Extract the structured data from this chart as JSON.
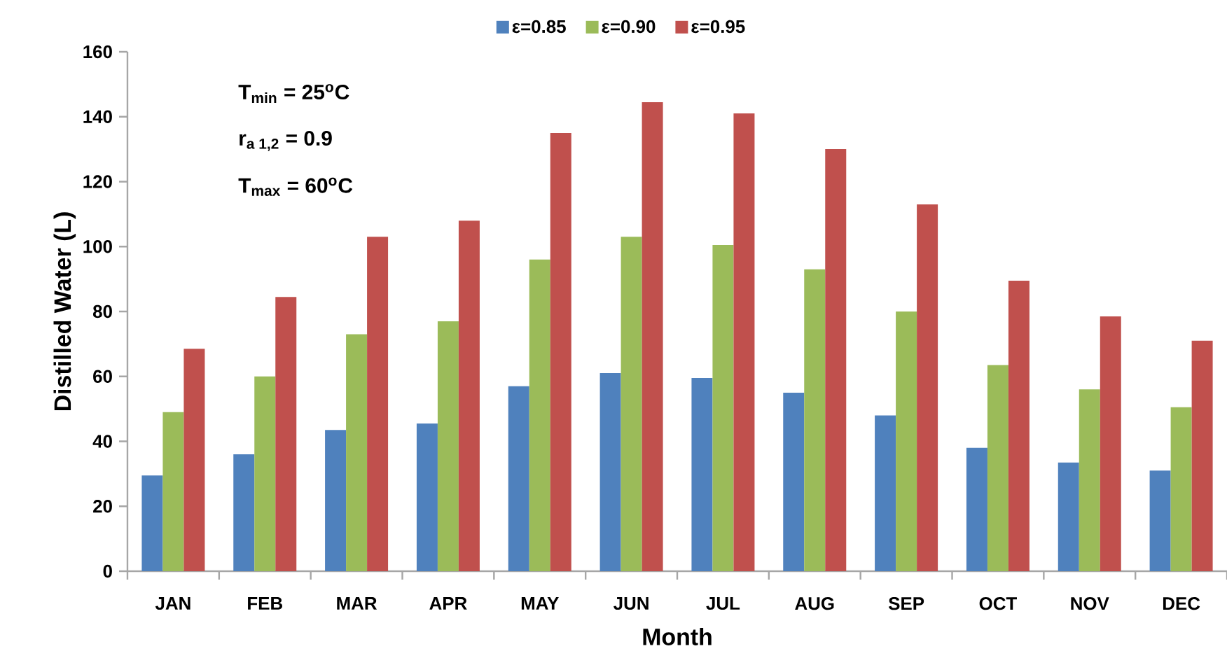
{
  "chart_data": {
    "type": "bar",
    "xlabel": "Month",
    "ylabel": "Distilled Water (L)",
    "categories": [
      "JAN",
      "FEB",
      "MAR",
      "APR",
      "MAY",
      "JUN",
      "JUL",
      "AUG",
      "SEP",
      "OCT",
      "NOV",
      "DEC"
    ],
    "series": [
      {
        "name": "ε=0.85",
        "color": "#4f81bd",
        "values": [
          29.5,
          36,
          43.5,
          45.5,
          57,
          61,
          59.5,
          55,
          48,
          38,
          33.5,
          31
        ]
      },
      {
        "name": "ε=0.90",
        "color": "#9bbb59",
        "values": [
          49,
          60,
          73,
          77,
          96,
          103,
          100.5,
          93,
          80,
          63.5,
          56,
          50.5
        ]
      },
      {
        "name": "ε=0.95",
        "color": "#c0504d",
        "values": [
          68.5,
          84.5,
          103,
          108,
          135,
          144.5,
          141,
          130,
          113,
          89.5,
          78.5,
          71
        ]
      }
    ],
    "ylim": [
      0,
      160
    ],
    "yticks": [
      0,
      20,
      40,
      60,
      80,
      100,
      120,
      140,
      160
    ],
    "legend": "top",
    "grid": false,
    "annotations": [
      "T$_{min}$ = 25$^{o}$C",
      "r$_{a 1,2}$ = 0.9",
      "T$_{max}$ = 60$^{o}$C"
    ]
  }
}
